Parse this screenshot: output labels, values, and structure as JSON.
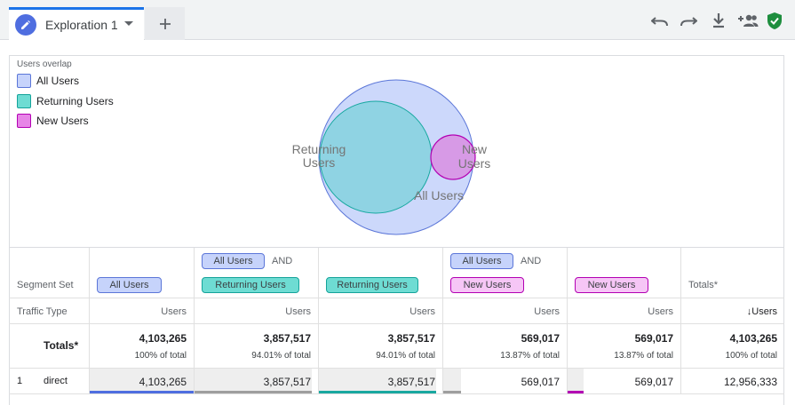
{
  "tab": {
    "title": "Exploration 1"
  },
  "icons": {
    "edit": "pencil-icon",
    "dropdown": "chevron-down-icon",
    "add_tab": "plus-icon",
    "undo": "undo-icon",
    "redo": "redo-icon",
    "download": "download-icon",
    "share": "add-person-icon",
    "status": "shield-check-icon"
  },
  "colors": {
    "all_users": "#c6d3fb",
    "returning_users": "#6edcd3",
    "new_users": "#e785e7",
    "accent": "#1a73e8",
    "shield": "#1e8e3e"
  },
  "venn": {
    "title": "Users overlap",
    "legend": [
      {
        "label": "All Users"
      },
      {
        "label": "Returning Users"
      },
      {
        "label": "New Users"
      }
    ],
    "labels": {
      "returning_line1": "Returning",
      "returning_line2": "Users",
      "new_line1": "New",
      "new_line2": "Users",
      "all": "All Users"
    }
  },
  "table": {
    "segment_set_label": "Segment Set",
    "traffic_type_label": "Traffic Type",
    "and_label": "AND",
    "columns": [
      {
        "chip": "All Users",
        "pre_chip": "",
        "metric": "Users",
        "total": "4,103,265",
        "pct": "100% of total",
        "row1": "4,103,265"
      },
      {
        "chip": "Returning Users",
        "pre_chip": "All Users",
        "metric": "Users",
        "total": "3,857,517",
        "pct": "94.01% of total",
        "row1": "3,857,517"
      },
      {
        "chip": "Returning Users",
        "pre_chip": "",
        "metric": "Users",
        "total": "3,857,517",
        "pct": "94.01% of total",
        "row1": "3,857,517"
      },
      {
        "chip": "New Users",
        "pre_chip": "All Users",
        "metric": "Users",
        "total": "569,017",
        "pct": "13.87% of total",
        "row1": "569,017"
      },
      {
        "chip": "New Users",
        "pre_chip": "",
        "metric": "Users",
        "total": "569,017",
        "pct": "13.87% of total",
        "row1": "569,017"
      },
      {
        "chip": "",
        "pre_chip": "",
        "heading": "Totals*",
        "metric": "↓Users",
        "total": "4,103,265",
        "pct": "100% of total",
        "row1": "12,956,333"
      }
    ],
    "totals_label": "Totals*",
    "rows": [
      {
        "index": "1",
        "name": "direct"
      }
    ]
  }
}
